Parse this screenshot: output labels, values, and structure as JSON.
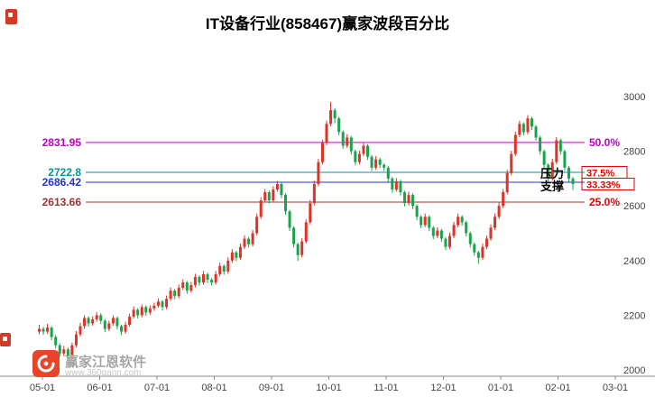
{
  "window": {
    "title": "IT设备行业(858467)赢家波段百分比"
  },
  "annotations": {
    "pressure_label": "压力",
    "support_label": "支撑"
  },
  "levels": [
    {
      "price_label": "2831.95",
      "value": 2831.95,
      "pct_label": "50.0%",
      "color": "#c000c0",
      "pct_color": "#c000c0",
      "boxed": false
    },
    {
      "price_label": "2722.8",
      "value": 2722.8,
      "pct_label": "37.5%",
      "color": "#009596",
      "pct_color": "#e60000",
      "boxed": true
    },
    {
      "price_label": "2686.42",
      "value": 2686.42,
      "pct_label": "33.33%",
      "color": "#2433cc",
      "pct_color": "#e60000",
      "boxed": true
    },
    {
      "price_label": "2613.66",
      "value": 2613.66,
      "pct_label": "25.0%",
      "color": "#993333",
      "pct_color": "#e60000",
      "boxed": false
    }
  ],
  "watermark": {
    "brand": "赢家江恩软件",
    "site": "www.360gann.com"
  },
  "chart_data": {
    "type": "candlestick",
    "title": "IT设备行业(858467)赢家波段百分比",
    "x_ticks": [
      "05-01",
      "06-01",
      "07-01",
      "08-01",
      "09-01",
      "10-01",
      "11-01",
      "12-01",
      "01-01",
      "02-01",
      "03-01"
    ],
    "y_ticks": [
      3000,
      2800,
      2600,
      2400,
      2200,
      2000
    ],
    "ylim": [
      2000,
      3060
    ],
    "up_color": "#dd3226",
    "down_color": "#18a44a",
    "grid": false,
    "ohlc": [
      [
        2140,
        2165,
        2130,
        2150
      ],
      [
        2150,
        2158,
        2128,
        2140
      ],
      [
        2140,
        2168,
        2132,
        2155
      ],
      [
        2155,
        2160,
        2108,
        2120
      ],
      [
        2120,
        2128,
        2078,
        2090
      ],
      [
        2090,
        2098,
        2048,
        2060
      ],
      [
        2060,
        2088,
        2050,
        2075
      ],
      [
        2075,
        2082,
        2038,
        2050
      ],
      [
        2050,
        2100,
        2042,
        2090
      ],
      [
        2090,
        2142,
        2082,
        2130
      ],
      [
        2130,
        2172,
        2122,
        2160
      ],
      [
        2160,
        2200,
        2150,
        2190
      ],
      [
        2190,
        2196,
        2158,
        2170
      ],
      [
        2170,
        2196,
        2162,
        2185
      ],
      [
        2185,
        2212,
        2176,
        2200
      ],
      [
        2200,
        2208,
        2168,
        2180
      ],
      [
        2180,
        2186,
        2138,
        2150
      ],
      [
        2150,
        2180,
        2142,
        2170
      ],
      [
        2170,
        2200,
        2162,
        2190
      ],
      [
        2190,
        2196,
        2148,
        2160
      ],
      [
        2160,
        2166,
        2128,
        2140
      ],
      [
        2140,
        2176,
        2132,
        2165
      ],
      [
        2165,
        2206,
        2158,
        2195
      ],
      [
        2195,
        2232,
        2188,
        2220
      ],
      [
        2220,
        2226,
        2188,
        2200
      ],
      [
        2200,
        2240,
        2192,
        2230
      ],
      [
        2230,
        2236,
        2198,
        2210
      ],
      [
        2210,
        2236,
        2202,
        2225
      ],
      [
        2225,
        2246,
        2216,
        2235
      ],
      [
        2235,
        2262,
        2228,
        2250
      ],
      [
        2250,
        2256,
        2218,
        2230
      ],
      [
        2230,
        2272,
        2222,
        2260
      ],
      [
        2260,
        2302,
        2252,
        2290
      ],
      [
        2290,
        2296,
        2258,
        2270
      ],
      [
        2270,
        2312,
        2262,
        2300
      ],
      [
        2300,
        2332,
        2292,
        2320
      ],
      [
        2320,
        2326,
        2278,
        2290
      ],
      [
        2290,
        2322,
        2282,
        2310
      ],
      [
        2310,
        2352,
        2302,
        2340
      ],
      [
        2340,
        2346,
        2308,
        2320
      ],
      [
        2320,
        2362,
        2312,
        2350
      ],
      [
        2350,
        2356,
        2318,
        2330
      ],
      [
        2330,
        2336,
        2308,
        2320
      ],
      [
        2320,
        2362,
        2312,
        2350
      ],
      [
        2350,
        2392,
        2342,
        2380
      ],
      [
        2380,
        2386,
        2348,
        2360
      ],
      [
        2360,
        2412,
        2352,
        2400
      ],
      [
        2400,
        2442,
        2392,
        2430
      ],
      [
        2430,
        2436,
        2398,
        2410
      ],
      [
        2410,
        2462,
        2402,
        2450
      ],
      [
        2450,
        2492,
        2442,
        2480
      ],
      [
        2480,
        2486,
        2448,
        2460
      ],
      [
        2460,
        2512,
        2452,
        2500
      ],
      [
        2500,
        2572,
        2492,
        2560
      ],
      [
        2560,
        2632,
        2552,
        2620
      ],
      [
        2620,
        2662,
        2612,
        2650
      ],
      [
        2650,
        2656,
        2608,
        2620
      ],
      [
        2620,
        2672,
        2612,
        2660
      ],
      [
        2660,
        2692,
        2652,
        2680
      ],
      [
        2680,
        2686,
        2628,
        2640
      ],
      [
        2640,
        2646,
        2568,
        2580
      ],
      [
        2580,
        2586,
        2508,
        2520
      ],
      [
        2520,
        2526,
        2448,
        2460
      ],
      [
        2460,
        2466,
        2398,
        2420
      ],
      [
        2420,
        2482,
        2412,
        2470
      ],
      [
        2470,
        2552,
        2462,
        2540
      ],
      [
        2540,
        2622,
        2532,
        2610
      ],
      [
        2610,
        2692,
        2602,
        2680
      ],
      [
        2680,
        2772,
        2672,
        2760
      ],
      [
        2760,
        2842,
        2752,
        2830
      ],
      [
        2830,
        2912,
        2822,
        2900
      ],
      [
        2900,
        2980,
        2892,
        2950
      ],
      [
        2950,
        2958,
        2902,
        2920
      ],
      [
        2920,
        2926,
        2858,
        2870
      ],
      [
        2870,
        2876,
        2808,
        2820
      ],
      [
        2820,
        2862,
        2812,
        2850
      ],
      [
        2850,
        2856,
        2788,
        2800
      ],
      [
        2800,
        2806,
        2748,
        2760
      ],
      [
        2760,
        2802,
        2752,
        2790
      ],
      [
        2790,
        2832,
        2782,
        2820
      ],
      [
        2820,
        2826,
        2768,
        2780
      ],
      [
        2780,
        2786,
        2728,
        2740
      ],
      [
        2740,
        2782,
        2732,
        2770
      ],
      [
        2770,
        2776,
        2738,
        2750
      ],
      [
        2750,
        2756,
        2728,
        2740
      ],
      [
        2740,
        2746,
        2688,
        2700
      ],
      [
        2700,
        2706,
        2648,
        2660
      ],
      [
        2660,
        2702,
        2652,
        2690
      ],
      [
        2690,
        2696,
        2638,
        2650
      ],
      [
        2650,
        2656,
        2598,
        2610
      ],
      [
        2610,
        2652,
        2602,
        2640
      ],
      [
        2640,
        2646,
        2588,
        2600
      ],
      [
        2600,
        2606,
        2548,
        2560
      ],
      [
        2560,
        2566,
        2518,
        2530
      ],
      [
        2530,
        2572,
        2522,
        2560
      ],
      [
        2560,
        2566,
        2508,
        2520
      ],
      [
        2520,
        2526,
        2478,
        2490
      ],
      [
        2490,
        2522,
        2482,
        2510
      ],
      [
        2510,
        2516,
        2468,
        2480
      ],
      [
        2480,
        2486,
        2438,
        2450
      ],
      [
        2450,
        2502,
        2442,
        2490
      ],
      [
        2490,
        2542,
        2482,
        2530
      ],
      [
        2530,
        2572,
        2522,
        2560
      ],
      [
        2560,
        2566,
        2528,
        2540
      ],
      [
        2540,
        2546,
        2488,
        2500
      ],
      [
        2500,
        2506,
        2448,
        2460
      ],
      [
        2460,
        2466,
        2418,
        2430
      ],
      [
        2430,
        2436,
        2388,
        2410
      ],
      [
        2410,
        2462,
        2402,
        2450
      ],
      [
        2450,
        2492,
        2442,
        2480
      ],
      [
        2480,
        2532,
        2472,
        2520
      ],
      [
        2520,
        2572,
        2512,
        2560
      ],
      [
        2560,
        2612,
        2552,
        2600
      ],
      [
        2600,
        2662,
        2592,
        2650
      ],
      [
        2650,
        2732,
        2642,
        2720
      ],
      [
        2720,
        2802,
        2712,
        2790
      ],
      [
        2790,
        2872,
        2782,
        2860
      ],
      [
        2860,
        2912,
        2852,
        2900
      ],
      [
        2900,
        2906,
        2858,
        2870
      ],
      [
        2870,
        2932,
        2862,
        2920
      ],
      [
        2920,
        2926,
        2878,
        2890
      ],
      [
        2890,
        2896,
        2838,
        2850
      ],
      [
        2850,
        2856,
        2788,
        2800
      ],
      [
        2800,
        2806,
        2738,
        2750
      ],
      [
        2750,
        2756,
        2688,
        2700
      ],
      [
        2700,
        2772,
        2692,
        2760
      ],
      [
        2760,
        2852,
        2752,
        2840
      ],
      [
        2840,
        2846,
        2788,
        2800
      ],
      [
        2800,
        2806,
        2728,
        2740
      ],
      [
        2740,
        2746,
        2688,
        2700
      ],
      [
        2700,
        2706,
        2658,
        2680
      ]
    ]
  }
}
